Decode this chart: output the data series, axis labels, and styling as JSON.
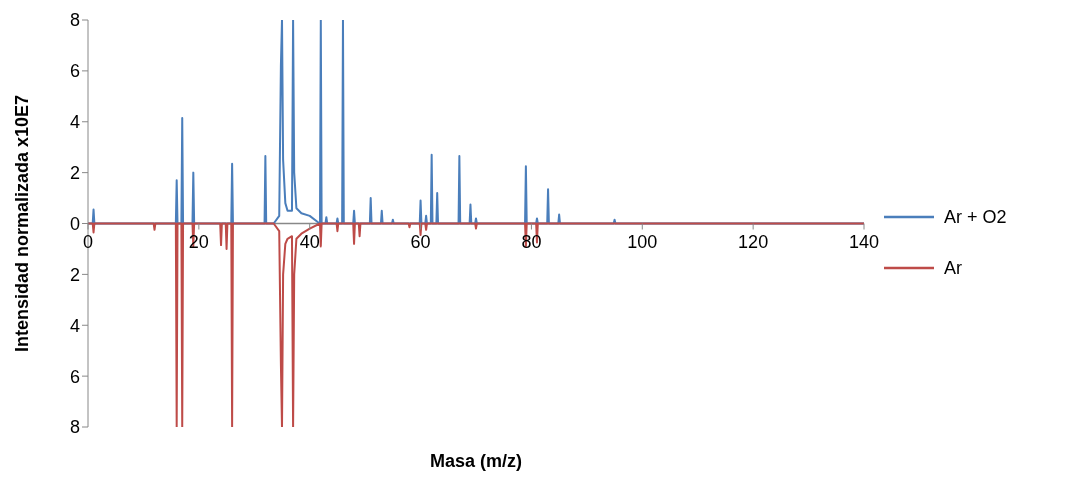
{
  "chart_data": {
    "type": "line",
    "xlabel": "Masa (m/z)",
    "ylabel": "Intensidad normalizada x10E7",
    "xlim": [
      0,
      140
    ],
    "xticks": [
      0,
      20,
      40,
      60,
      80,
      100,
      120,
      140
    ],
    "ylim": [
      -8,
      8
    ],
    "yticks": [
      {
        "value": -8,
        "label": "8"
      },
      {
        "value": -6,
        "label": "6"
      },
      {
        "value": -4,
        "label": "4"
      },
      {
        "value": -2,
        "label": "2"
      },
      0,
      2,
      4,
      6,
      8
    ],
    "grid": false,
    "legend": "right",
    "marker": "none",
    "line_style": "solid",
    "series": [
      {
        "name": "Ar + O2",
        "color": "#4a7ebb",
        "x": [
          0,
          0.85,
          1,
          1.15,
          15.85,
          16,
          16.15,
          16.85,
          17,
          17.15,
          18.85,
          19,
          19.15,
          25.85,
          26,
          26.15,
          31.85,
          32,
          32.15,
          33.5,
          34.5,
          34.8,
          35,
          35.2,
          35.6,
          36,
          36.8,
          37,
          37.2,
          37.6,
          38.5,
          40,
          41.5,
          41.85,
          42,
          42.15,
          42.85,
          43,
          43.15,
          44.85,
          45,
          45.15,
          45.85,
          46,
          46.15,
          47.85,
          48,
          48.15,
          50.85,
          51,
          51.15,
          52.85,
          53,
          53.15,
          54.85,
          55,
          55.15,
          59.85,
          60,
          60.15,
          60.85,
          61,
          61.15,
          61.85,
          62,
          62.15,
          62.85,
          63,
          63.15,
          66.85,
          67,
          67.15,
          68.85,
          69,
          69.15,
          69.85,
          70,
          70.15,
          78.85,
          79,
          79.15,
          80.85,
          81,
          81.15,
          82.85,
          83,
          83.15,
          84.85,
          85,
          85.15,
          94.85,
          95,
          95.15,
          140
        ],
        "values": [
          0,
          0,
          0.55,
          0,
          0,
          1.7,
          0,
          0,
          4.15,
          0,
          0,
          2.0,
          0,
          0,
          2.35,
          0,
          0,
          2.65,
          0,
          0,
          0.3,
          6.2,
          8,
          2.5,
          0.8,
          0.5,
          0.5,
          8,
          2,
          0.6,
          0.4,
          0.3,
          0.05,
          0,
          8,
          0,
          0,
          0.25,
          0,
          0,
          0.2,
          0,
          0,
          8,
          0,
          0,
          0.5,
          0,
          0,
          1.0,
          0,
          0,
          0.5,
          0,
          0,
          0.15,
          0,
          0,
          0.9,
          0,
          0,
          0.3,
          0,
          0,
          2.7,
          0,
          0,
          1.2,
          0,
          0,
          2.65,
          0,
          0,
          0.75,
          0,
          0,
          0.2,
          0,
          0,
          2.25,
          0,
          0,
          0.2,
          0,
          0,
          1.35,
          0,
          0,
          0.35,
          0,
          0,
          0.15,
          0,
          0
        ]
      },
      {
        "name": "Ar",
        "color": "#be4b48",
        "x": [
          0,
          0.85,
          1,
          1.15,
          11.85,
          12,
          12.15,
          15.85,
          16,
          16.15,
          16.85,
          17,
          17.15,
          18.85,
          19,
          19.15,
          23.85,
          24,
          24.15,
          24.85,
          25,
          25.15,
          25.85,
          26,
          26.15,
          33.5,
          34.5,
          34.8,
          35,
          35.2,
          35.6,
          36,
          36.8,
          37,
          37.2,
          37.6,
          38.5,
          40,
          41.85,
          42,
          42.15,
          44.85,
          45,
          45.15,
          47.85,
          48,
          48.15,
          48.85,
          49,
          49.15,
          57.85,
          58,
          58.15,
          59.85,
          60,
          60.15,
          60.85,
          61,
          61.15,
          69.85,
          70,
          70.15,
          78.85,
          79,
          79.15,
          80.85,
          81,
          81.15,
          140
        ],
        "values": [
          0,
          0,
          -0.35,
          0,
          0,
          -0.25,
          0,
          0,
          -8,
          0,
          0,
          -8,
          0,
          0,
          -0.9,
          0,
          0,
          -0.85,
          0,
          0,
          -1.0,
          0,
          0,
          -8,
          0,
          0,
          -0.3,
          -5.5,
          -8,
          -2,
          -0.8,
          -0.6,
          -0.5,
          -8,
          -2,
          -0.6,
          -0.4,
          -0.2,
          0,
          -0.9,
          0,
          0,
          -0.3,
          0,
          0,
          -0.8,
          0,
          0,
          -0.5,
          0,
          0,
          -0.15,
          0,
          0,
          -0.45,
          0,
          0,
          -0.25,
          0,
          0,
          -0.2,
          0,
          0,
          -0.9,
          0,
          0,
          -0.75,
          0,
          0
        ]
      }
    ]
  }
}
